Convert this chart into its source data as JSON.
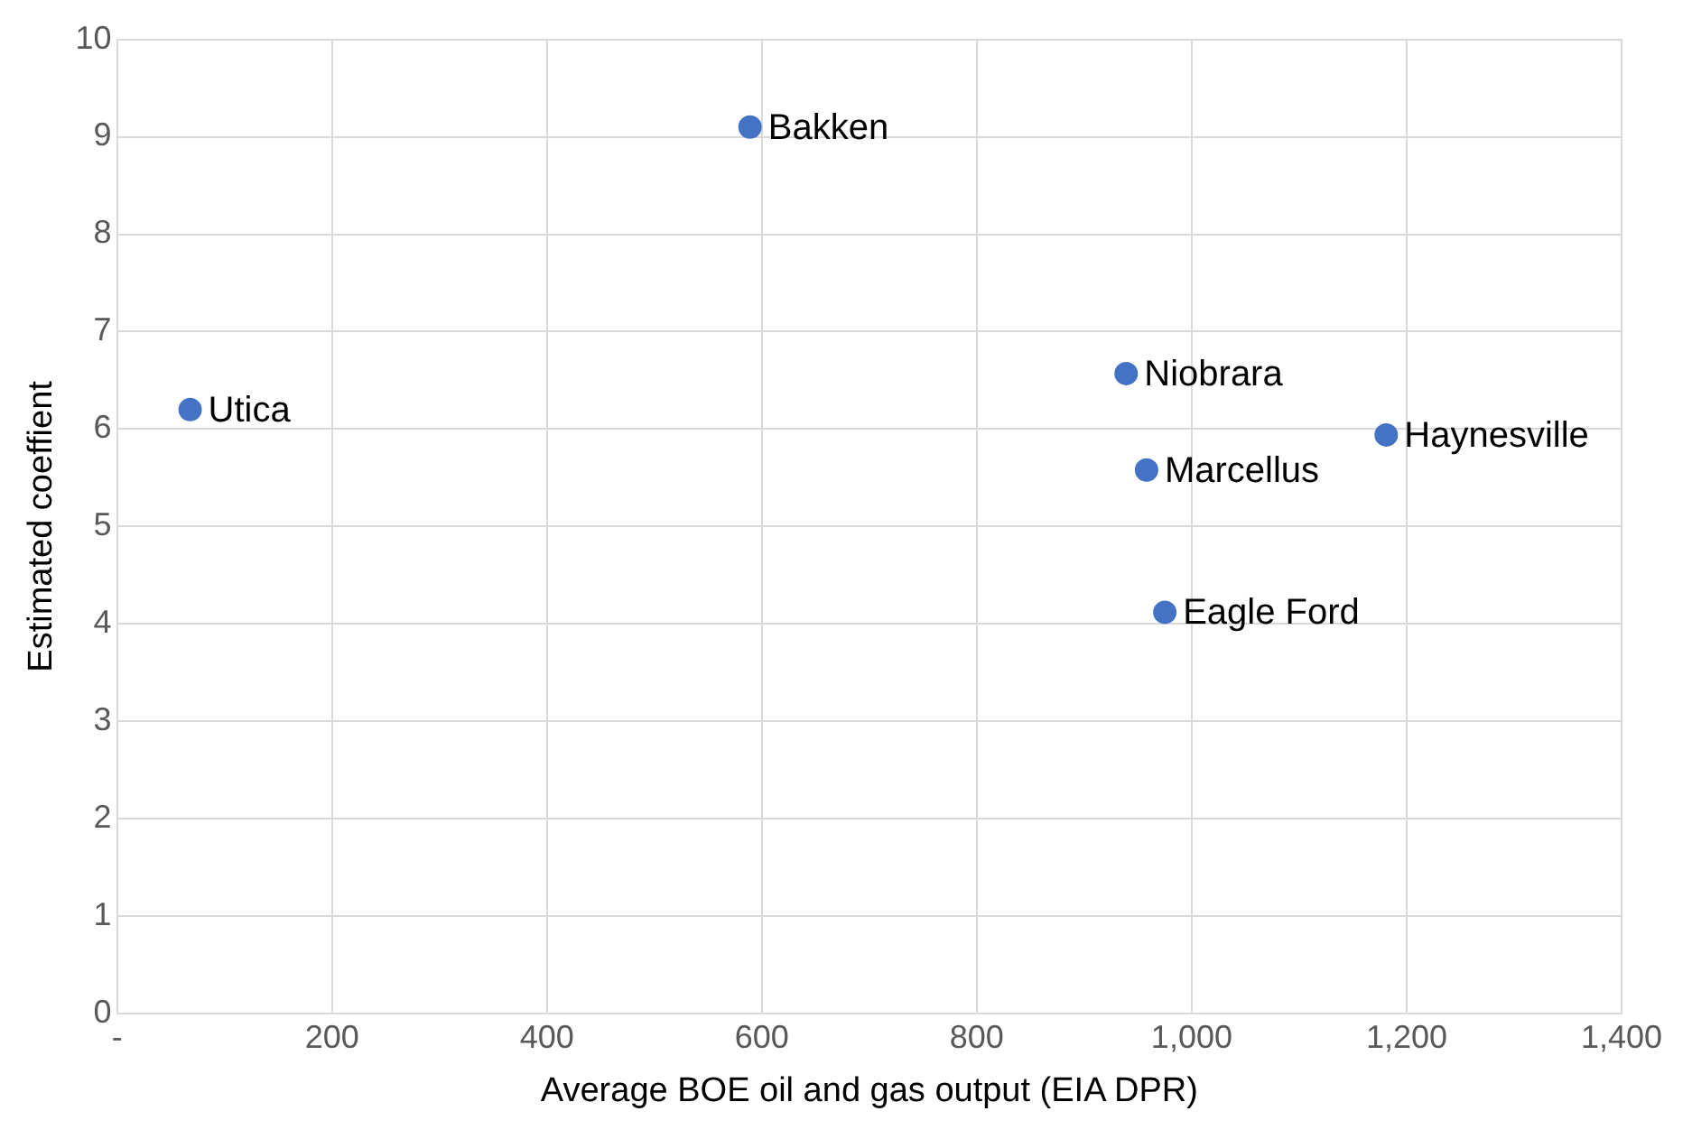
{
  "chart_data": {
    "type": "scatter",
    "xlabel": "Average BOE oil and gas output (EIA DPR)",
    "ylabel": "Estimated coeffient",
    "x": [
      68,
      589,
      939,
      958,
      1181,
      975
    ],
    "values": [
      6.2,
      9.1,
      6.57,
      5.58,
      5.94,
      4.12
    ],
    "color": "#4472c4",
    "marker": "circle",
    "grid": true,
    "legend": false,
    "xlim": [
      0,
      1400
    ],
    "xticks": [
      {
        "value": 0,
        "label": "-"
      },
      200,
      400,
      600,
      800,
      {
        "value": 1000,
        "label": "1,000"
      },
      {
        "value": 1200,
        "label": "1,200"
      },
      {
        "value": 1400,
        "label": "1,400"
      }
    ],
    "ylim": [
      0,
      10
    ],
    "yticks": [
      0,
      1,
      2,
      3,
      4,
      5,
      6,
      7,
      8,
      9,
      10
    ],
    "annotations": [
      {
        "text": "Utica",
        "x": 68,
        "y": 6.2
      },
      {
        "text": "Bakken",
        "x": 589,
        "y": 9.1
      },
      {
        "text": "Niobrara",
        "x": 939,
        "y": 6.57
      },
      {
        "text": "Marcellus",
        "x": 958,
        "y": 5.58
      },
      {
        "text": "Haynesville",
        "x": 1181,
        "y": 5.94
      },
      {
        "text": "Eagle Ford",
        "x": 975,
        "y": 4.12
      }
    ]
  }
}
